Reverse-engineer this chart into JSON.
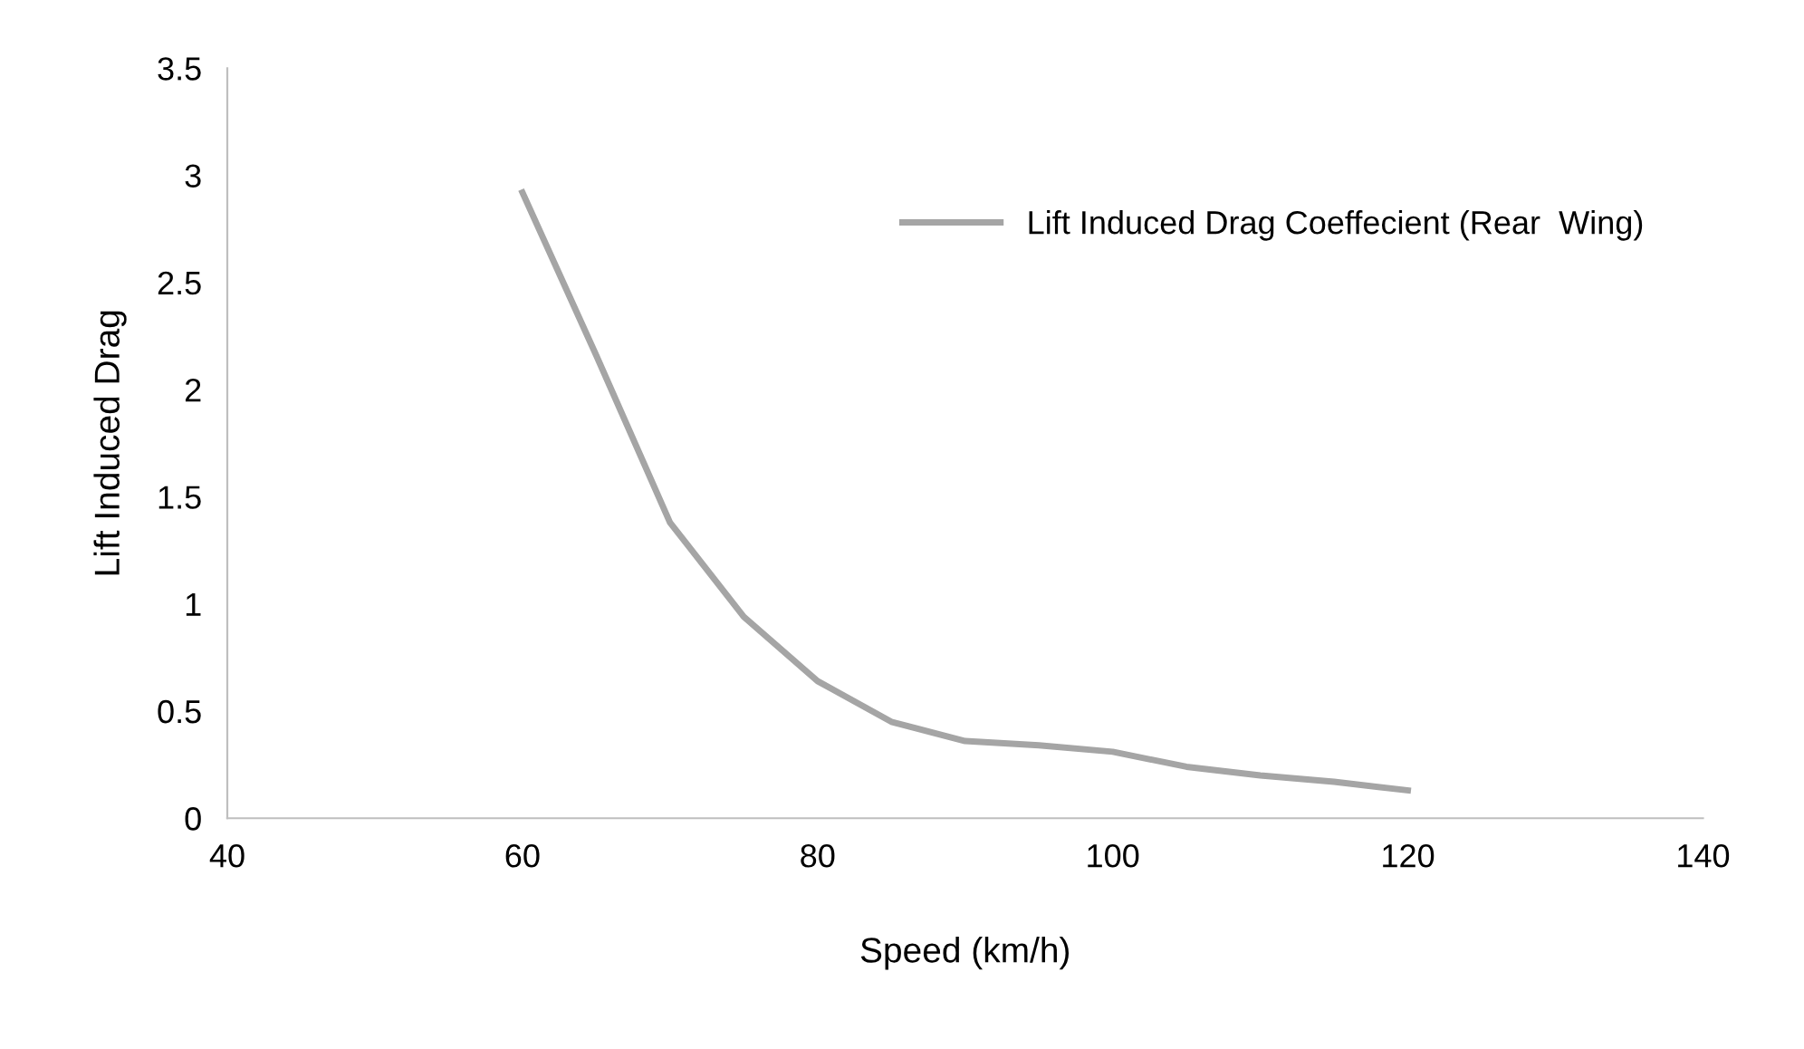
{
  "chart_data": {
    "type": "line",
    "xlabel": "Speed (km/h)",
    "ylabel": "Lift Induced Drag",
    "x": [
      60,
      65,
      70,
      75,
      80,
      85,
      90,
      95,
      100,
      105,
      110,
      115,
      120
    ],
    "series": [
      {
        "name": "Lift Induced Drag Coeffecient (Rear  Wing)",
        "color": "#a5a5a5",
        "values": [
          2.92,
          2.16,
          1.38,
          0.94,
          0.64,
          0.45,
          0.36,
          0.34,
          0.31,
          0.24,
          0.2,
          0.17,
          0.13
        ]
      }
    ],
    "xlim": [
      40,
      140
    ],
    "xticks": [
      40,
      60,
      80,
      100,
      120,
      140
    ],
    "ylim": [
      0,
      3.5
    ],
    "yticks": [
      0,
      0.5,
      1,
      1.5,
      2,
      2.5,
      3,
      3.5
    ],
    "grid": false,
    "legend": "top right",
    "marker": "none",
    "line_style": "solid"
  }
}
